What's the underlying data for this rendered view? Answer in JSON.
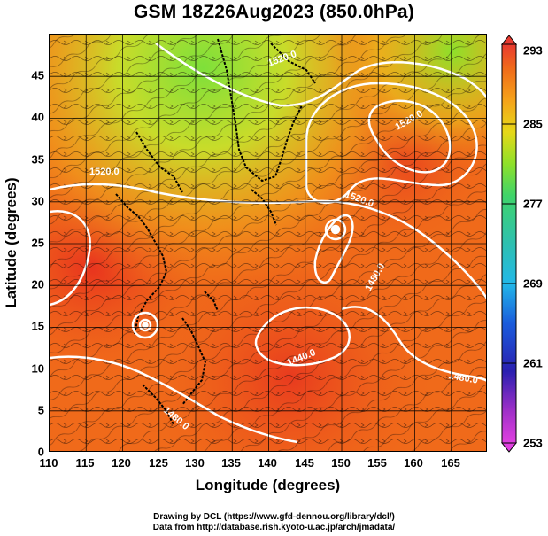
{
  "title": "GSM 18Z26Aug2023 (850.0hPa)",
  "axes": {
    "xlabel": "Longitude (degrees)",
    "ylabel": "Latitude  (degrees)",
    "xticks": [
      "110",
      "115",
      "120",
      "125",
      "130",
      "135",
      "140",
      "145",
      "150",
      "155",
      "160",
      "165"
    ],
    "yticks": [
      "0",
      "5",
      "10",
      "15",
      "20",
      "25",
      "30",
      "35",
      "40",
      "45"
    ],
    "xlim": [
      110,
      170
    ],
    "ylim": [
      0,
      50
    ]
  },
  "colorbar": {
    "ticks": [
      "253",
      "261",
      "269",
      "277",
      "285",
      "293"
    ],
    "range": [
      253,
      293
    ],
    "colors": [
      "#d63bd6",
      "#2a1fb0",
      "#1a6de0",
      "#22b8e8",
      "#3fd46a",
      "#8ee02a",
      "#e6d818",
      "#f5a21a",
      "#f06a1a",
      "#e8321e",
      "#e03a30"
    ]
  },
  "contour_labels": [
    "1520.0",
    "1520.0",
    "1520.0",
    "1520.0",
    "1480.0",
    "1440.0",
    "1480.0",
    "1480.0"
  ],
  "credits": {
    "line1": "Drawing by DCL (https://www.gfd-dennou.org/library/dcl/)",
    "line2": "Data from http://database.rish.kyoto-u.ac.jp/arch/jmadata/"
  }
}
